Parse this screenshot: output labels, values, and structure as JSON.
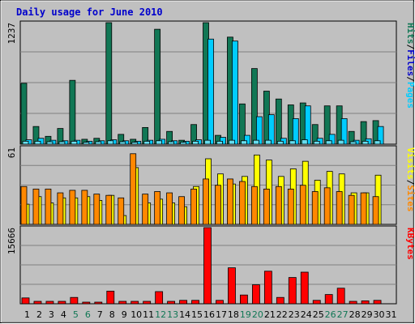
{
  "chart_data": {
    "type": "bar",
    "title": "Daily usage for June 2010",
    "x": [
      "1",
      "2",
      "3",
      "4",
      "5",
      "6",
      "7",
      "8",
      "9",
      "10",
      "11",
      "12",
      "13",
      "14",
      "15",
      "16",
      "17",
      "18",
      "19",
      "20",
      "21",
      "22",
      "23",
      "24",
      "25",
      "26",
      "27",
      "28",
      "29",
      "30",
      "31"
    ],
    "weekend_days": [
      "5",
      "6",
      "12",
      "13",
      "19",
      "20",
      "26",
      "27"
    ],
    "panels": [
      {
        "name": "hits-files-pages",
        "ymax": 1237,
        "ymax_label": "1237",
        "legend": [
          "Pages",
          "/",
          "Files",
          "/",
          "Hits"
        ],
        "series": [
          {
            "name": "Hits",
            "color": "#117755",
            "values": [
              620,
              180,
              80,
              160,
              650,
              50,
              60,
              1237,
              100,
              50,
              170,
              1170,
              130,
              40,
              200,
              1237,
              90,
              1090,
              410,
              770,
              540,
              460,
              400,
              420,
              200,
              390,
              390,
              130,
              230,
              240,
              0
            ]
          },
          {
            "name": "Files",
            "color": "#00ccff",
            "values": [
              45,
              60,
              40,
              35,
              40,
              30,
              35,
              45,
              35,
              30,
              40,
              50,
              35,
              30,
              45,
              1070,
              70,
              1050,
              90,
              280,
              300,
              60,
              260,
              390,
              60,
              100,
              260,
              40,
              55,
              180,
              0
            ]
          },
          {
            "name": "Pages",
            "color": "#66ddee",
            "values": [
              30,
              30,
              25,
              25,
              30,
              20,
              25,
              35,
              25,
              20,
              30,
              35,
              25,
              20,
              30,
              40,
              30,
              40,
              35,
              40,
              40,
              30,
              35,
              45,
              30,
              35,
              40,
              25,
              30,
              35,
              0
            ]
          }
        ]
      },
      {
        "name": "visits-sites",
        "ymax": 61,
        "ymax_label": "61",
        "legend": [
          "Sites",
          "/",
          "Visits"
        ],
        "series": [
          {
            "name": "Visits",
            "color": "#ffff00",
            "values": [
              16,
              22,
              17,
              21,
              21,
              22,
              19,
              23,
              7,
              45,
              17,
              20,
              17,
              14,
              30,
              52,
              40,
              32,
              38,
              55,
              51,
              38,
              44,
              50,
              35,
              42,
              40,
              25,
              25,
              39,
              0
            ]
          },
          {
            "name": "Sites",
            "color": "#ff8800",
            "values": [
              30,
              28,
              28,
              25,
              27,
              27,
              24,
              23,
              21,
              56,
              24,
              26,
              25,
              22,
              28,
              36,
              31,
              36,
              34,
              30,
              28,
              30,
              28,
              31,
              26,
              29,
              26,
              23,
              25,
              22,
              0
            ]
          }
        ]
      },
      {
        "name": "kbytes",
        "ymax": 15666,
        "ymax_label": "15666",
        "legend": [
          "KBytes"
        ],
        "series": [
          {
            "name": "KBytes",
            "color": "#ff0000",
            "values": [
              1200,
              500,
              500,
              500,
              1300,
              300,
              300,
              2600,
              500,
              500,
              500,
              2500,
              500,
              700,
              700,
              15666,
              700,
              7400,
              1800,
              3900,
              6700,
              1300,
              5400,
              6500,
              700,
              1900,
              3200,
              500,
              600,
              700,
              0
            ]
          }
        ]
      }
    ]
  }
}
